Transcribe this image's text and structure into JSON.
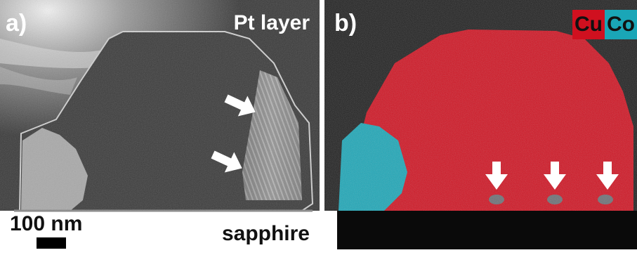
{
  "panel_a": {
    "label": "a)",
    "top_layer": "Pt layer",
    "substrate": "sapphire",
    "scale_bar": "100 nm"
  },
  "panel_b": {
    "label": "b)",
    "legend": [
      {
        "element": "Cu",
        "color": "#d0101f"
      },
      {
        "element": "Co",
        "color": "#1aa6b7"
      }
    ]
  },
  "icons": {
    "panel_a_arrows": [
      "arrow-icon",
      "arrow-icon"
    ],
    "panel_b_arrows": [
      "down-arrow-icon",
      "down-arrow-icon",
      "down-arrow-icon"
    ]
  }
}
